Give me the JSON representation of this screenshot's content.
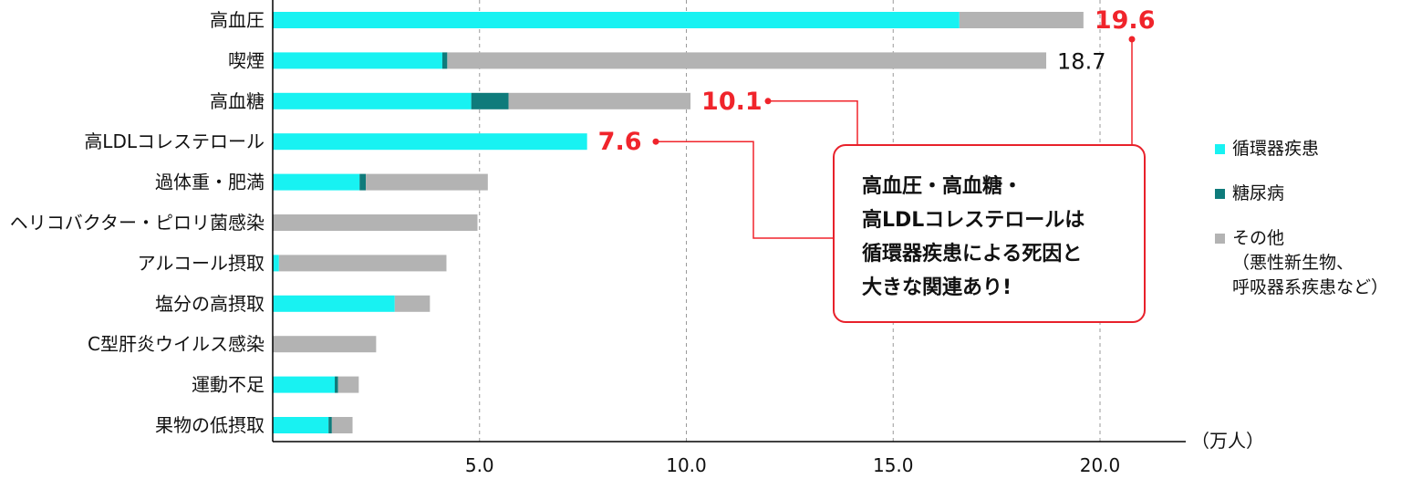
{
  "chart_data": {
    "type": "bar",
    "orientation": "horizontal",
    "stacked": true,
    "categories": [
      "高血圧",
      "喫煙",
      "高血糖",
      "高LDLコレステロール",
      "過体重・肥満",
      "ヘリコバクター・ピロリ菌感染",
      "アルコール摂取",
      "塩分の高摂取",
      "C型肝炎ウイルス感染",
      "運動不足",
      "果物の低摂取"
    ],
    "series": [
      {
        "name": "循環器疾患",
        "color": "#18f2f2",
        "values": [
          16.6,
          4.1,
          4.8,
          7.6,
          2.1,
          0.0,
          0.15,
          2.95,
          0.0,
          1.5,
          1.35
        ]
      },
      {
        "name": "糖尿病",
        "color": "#0f7b7b",
        "values": [
          0.0,
          0.12,
          0.9,
          0.0,
          0.15,
          0.0,
          0.0,
          0.0,
          0.0,
          0.08,
          0.08
        ]
      },
      {
        "name": "その他\n（悪性新生物、\n呼吸器系疾患など）",
        "color": "#b3b3b3",
        "values": [
          3.0,
          14.48,
          4.4,
          0.0,
          2.95,
          4.95,
          4.05,
          0.85,
          2.5,
          0.5,
          0.5
        ]
      }
    ],
    "totals_shown": [
      {
        "category_index": 0,
        "label": "19.6",
        "highlight": true
      },
      {
        "category_index": 1,
        "label": "18.7",
        "highlight": false
      },
      {
        "category_index": 2,
        "label": "10.1",
        "highlight": true
      },
      {
        "category_index": 3,
        "label": "7.6",
        "highlight": true
      }
    ],
    "xlim": [
      0,
      22.3
    ],
    "xticks": [
      5,
      10,
      15,
      20
    ],
    "xtick_labels": [
      "5.0",
      "10.0",
      "15.0",
      "20.0"
    ],
    "xunit": "（万人）",
    "grid": "vertical dashed",
    "legend_position": "right",
    "colors": {
      "highlight": "#f0242b",
      "grid": "#9a9a9a",
      "axis": "#000000"
    }
  },
  "callout": {
    "text": "高血圧・高血糖・\n高LDLコレステロールは\n循環器疾患による死因と\n大きな関連あり!"
  }
}
